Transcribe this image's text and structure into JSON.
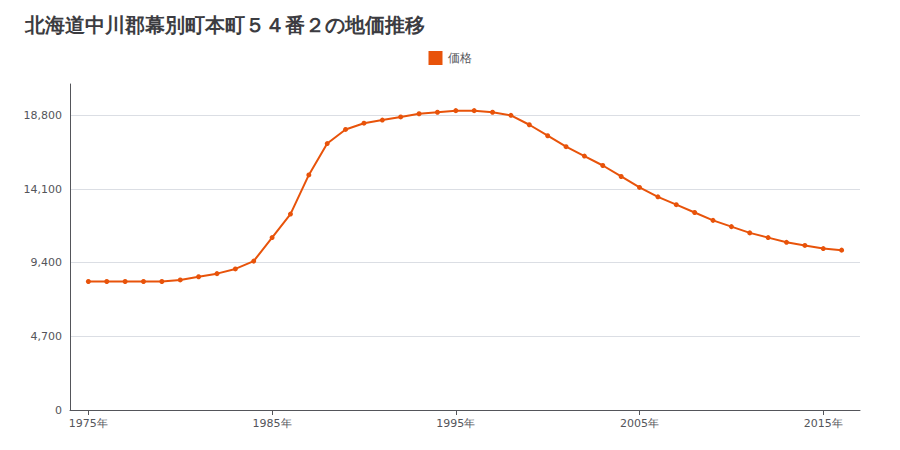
{
  "chart_data": {
    "type": "line",
    "title": "北海道中川郡幕別町本町５４番２の地価推移",
    "x": [
      1975,
      1976,
      1977,
      1978,
      1979,
      1980,
      1981,
      1982,
      1983,
      1984,
      1985,
      1986,
      1987,
      1988,
      1989,
      1990,
      1991,
      1992,
      1993,
      1994,
      1995,
      1996,
      1997,
      1998,
      1999,
      2000,
      2001,
      2002,
      2003,
      2004,
      2005,
      2006,
      2007,
      2008,
      2009,
      2010,
      2011,
      2012,
      2013,
      2014,
      2015,
      2016
    ],
    "series": [
      {
        "name": "価格",
        "color": "#E8530A",
        "marker": "circle",
        "values": [
          8200,
          8200,
          8200,
          8200,
          8200,
          8300,
          8500,
          8700,
          9000,
          9500,
          11000,
          12500,
          15000,
          17000,
          17900,
          18300,
          18500,
          18700,
          18900,
          19000,
          19100,
          19100,
          19000,
          18800,
          18200,
          17500,
          16800,
          16200,
          15600,
          14900,
          14200,
          13600,
          13100,
          12600,
          12100,
          11700,
          11300,
          11000,
          10700,
          10500,
          10300,
          10200
        ]
      }
    ],
    "xlim": [
      1974,
      2017
    ],
    "xticks": [
      {
        "value": 1975,
        "label": "1975年"
      },
      {
        "value": 1985,
        "label": "1985年"
      },
      {
        "value": 1995,
        "label": "1995年"
      },
      {
        "value": 2005,
        "label": "2005年"
      },
      {
        "value": 2015,
        "label": "2015年"
      }
    ],
    "ylim": [
      0,
      20800
    ],
    "yticks": [
      0,
      {
        "value": 4700,
        "label": "4,700"
      },
      {
        "value": 9400,
        "label": "9,400"
      },
      {
        "value": 14100,
        "label": "14,100"
      },
      {
        "value": 18800,
        "label": "18,800"
      }
    ],
    "grid": true,
    "legend": "top"
  }
}
